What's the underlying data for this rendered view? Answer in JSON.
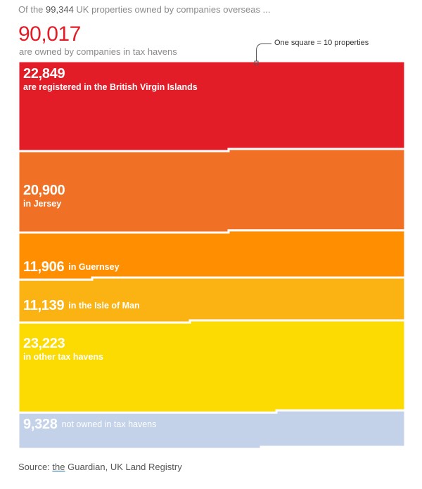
{
  "intro": {
    "prefix": "Of the ",
    "total": "99,344",
    "suffix": " UK properties owned by companies overseas ..."
  },
  "headline": {
    "value": "90,017",
    "text": "are owned by companies in tax havens"
  },
  "key_note": "One square = 10 properties",
  "source": {
    "prefix": "Source: ",
    "link": "the",
    "rest": " Guardian, UK Land Registry"
  },
  "colors": {
    "bvi": "#e31d27",
    "jersey": "#f07125",
    "guernsey": "#ff8f00",
    "isle_of_man": "#fbb314",
    "other": "#fbdb01",
    "not_havens": "#c3d2e9"
  },
  "chart_data": {
    "type": "waffle",
    "unit": 10,
    "unit_label": "One square = 10 properties",
    "total": 99344,
    "tax_haven_total": 90017,
    "series": [
      {
        "key": "bvi",
        "value": 22849,
        "value_label": "22,849",
        "text": "are registered in the British Virgin Islands",
        "color": "#e31d27"
      },
      {
        "key": "jersey",
        "value": 20900,
        "value_label": "20,900",
        "text": "in Jersey",
        "color": "#f07125"
      },
      {
        "key": "guernsey",
        "value": 11906,
        "value_label": "11,906",
        "text": "in Guernsey",
        "color": "#ff8f00"
      },
      {
        "key": "isle_of_man",
        "value": 11139,
        "value_label": "11,139",
        "text": "in the Isle of Man",
        "color": "#fbb314"
      },
      {
        "key": "other",
        "value": 23223,
        "value_label": "23,223",
        "text": "in other tax havens",
        "color": "#fbdb01"
      },
      {
        "key": "not_havens",
        "value": 9328,
        "value_label": "9,328",
        "text": "not owned in tax havens",
        "color": "#c3d2e9"
      }
    ]
  }
}
